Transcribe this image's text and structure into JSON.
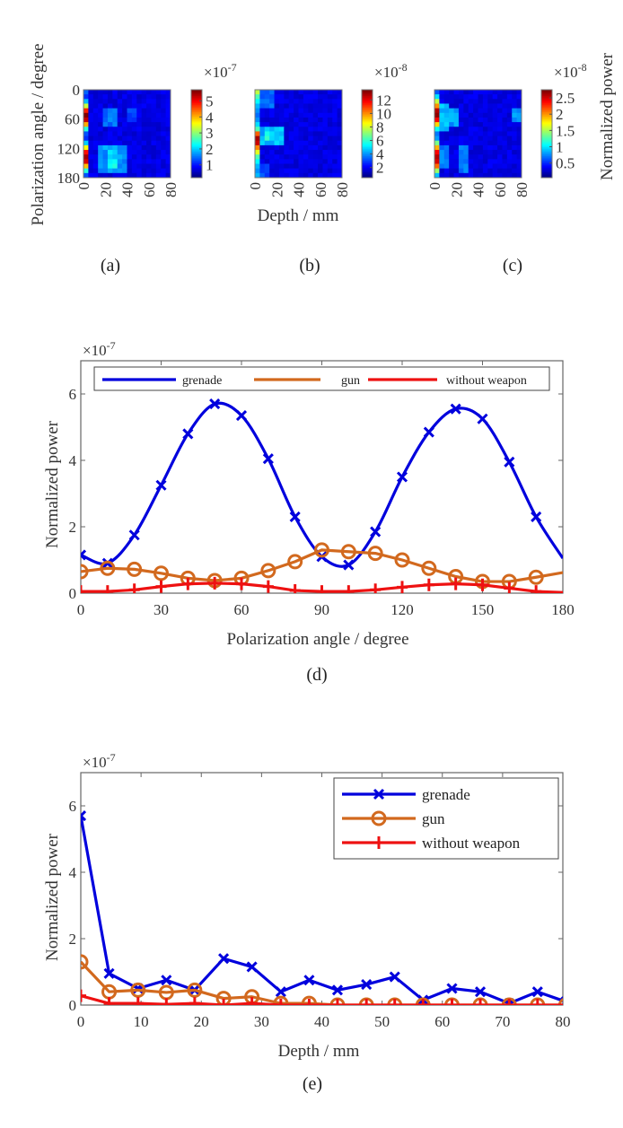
{
  "chart_data": [
    {
      "id": "a",
      "type": "heatmap",
      "caption": "(a)",
      "xlabel": "",
      "ylabel": "Polarization angle / degree",
      "x_ticks": [
        "0",
        "20",
        "40",
        "60",
        "80"
      ],
      "y_ticks": [
        "0",
        "60",
        "120",
        "180"
      ],
      "xlim": [
        0,
        80
      ],
      "ylim": [
        0,
        180
      ],
      "colorbar": {
        "exponent": "×10",
        "power": "-7",
        "ticks": [
          "1",
          "2",
          "3",
          "4",
          "5"
        ],
        "range": [
          0.2,
          5.7
        ]
      },
      "description": "Strong response in first depth column with two peaks near 40-60 deg and 130-170 deg; weak blobs near depth 20-30 mm",
      "grid": {
        "rows": 19,
        "cols": 18,
        "hot_column_profile": [
          1.2,
          0.9,
          1.7,
          3.2,
          4.8,
          5.7,
          5.3,
          4.0,
          2.3,
          1.1,
          0.9,
          1.8,
          3.5,
          4.9,
          5.5,
          5.2,
          3.9,
          2.3,
          1.1
        ],
        "blobs": [
          {
            "row_from": 4,
            "row_to": 7,
            "col_from": 4,
            "col_to": 6,
            "value": 1.3
          },
          {
            "row_from": 4,
            "row_to": 6,
            "col_from": 9,
            "col_to": 10,
            "value": 1.0
          },
          {
            "row_from": 12,
            "row_to": 17,
            "col_from": 3,
            "col_to": 8,
            "value": 1.5
          },
          {
            "row_from": 13,
            "row_to": 16,
            "col_from": 5,
            "col_to": 6,
            "value": 2.0
          }
        ]
      }
    },
    {
      "id": "b",
      "type": "heatmap",
      "caption": "(b)",
      "xlabel": "Depth / mm",
      "ylabel": "",
      "x_ticks": [
        "0",
        "20",
        "40",
        "60",
        "80"
      ],
      "y_ticks": [],
      "xlim": [
        0,
        80
      ],
      "ylim": [
        0,
        180
      ],
      "colorbar": {
        "exponent": "×10",
        "power": "-8",
        "ticks": [
          "2",
          "4",
          "6",
          "8",
          "10",
          "12"
        ],
        "range": [
          0.5,
          13.5
        ]
      },
      "description": "Hot first column peaking near 90-110 deg; cyan blob around depth 5-25 mm at 90-110 deg",
      "grid": {
        "rows": 19,
        "cols": 18,
        "hot_column_profile": [
          7.5,
          6.0,
          5.0,
          4.0,
          3.5,
          3.0,
          3.5,
          4.5,
          6.0,
          10.5,
          13.0,
          12.5,
          10.0,
          8.0,
          6.0,
          5.0,
          4.0,
          3.5,
          4.0
        ],
        "blobs": [
          {
            "row_from": 0,
            "row_to": 3,
            "col_from": 1,
            "col_to": 3,
            "value": 3.0
          },
          {
            "row_from": 8,
            "row_to": 11,
            "col_from": 1,
            "col_to": 5,
            "value": 4.0
          },
          {
            "row_from": 9,
            "row_to": 10,
            "col_from": 2,
            "col_to": 3,
            "value": 5.0
          },
          {
            "row_from": 16,
            "row_to": 18,
            "col_from": 1,
            "col_to": 2,
            "value": 2.5
          }
        ]
      }
    },
    {
      "id": "c",
      "type": "heatmap",
      "caption": "(c)",
      "xlabel": "",
      "ylabel": "Normalized power",
      "x_ticks": [
        "0",
        "20",
        "40",
        "60",
        "80"
      ],
      "y_ticks": [],
      "xlim": [
        0,
        80
      ],
      "ylim": [
        0,
        180
      ],
      "colorbar": {
        "exponent": "×10",
        "power": "-8",
        "ticks": [
          "0.5",
          "1",
          "1.5",
          "2",
          "2.5"
        ],
        "range": [
          0.05,
          2.75
        ]
      },
      "description": "Hot first column with peaks near 40-60 deg and 130-170 deg; faint vertical stripes elsewhere",
      "grid": {
        "rows": 19,
        "cols": 18,
        "hot_column_profile": [
          0.5,
          0.9,
          1.5,
          2.0,
          2.6,
          2.7,
          2.4,
          1.8,
          1.0,
          0.6,
          0.7,
          1.3,
          1.9,
          2.4,
          2.6,
          2.5,
          2.1,
          1.4,
          0.8
        ],
        "blobs": [
          {
            "row_from": 3,
            "row_to": 8,
            "col_from": 1,
            "col_to": 2,
            "value": 0.8
          },
          {
            "row_from": 4,
            "row_to": 7,
            "col_from": 3,
            "col_to": 4,
            "value": 0.7
          },
          {
            "row_from": 4,
            "row_to": 6,
            "col_from": 16,
            "col_to": 17,
            "value": 0.7
          },
          {
            "row_from": 12,
            "row_to": 17,
            "col_from": 5,
            "col_to": 6,
            "value": 0.6
          },
          {
            "row_from": 12,
            "row_to": 16,
            "col_from": 1,
            "col_to": 2,
            "value": 0.6
          }
        ]
      }
    },
    {
      "id": "d",
      "type": "line",
      "caption": "(d)",
      "xlabel": "Polarization angle / degree",
      "ylabel": "Normalized power",
      "y_exponent": "×10",
      "y_power": "-7",
      "xlim": [
        0,
        180
      ],
      "ylim": [
        0,
        7
      ],
      "x_ticks": [
        0,
        30,
        60,
        90,
        120,
        150,
        180
      ],
      "y_ticks": [
        0,
        2,
        4,
        6
      ],
      "legend": {
        "placement": "top",
        "orientation": "horizontal"
      },
      "x": [
        0,
        10,
        20,
        30,
        40,
        50,
        60,
        70,
        80,
        90,
        100,
        110,
        120,
        130,
        140,
        150,
        160,
        170,
        180
      ],
      "series": [
        {
          "name": "grenade",
          "color": "#0000dd",
          "marker": "x",
          "smooth": true,
          "values": [
            1.15,
            0.9,
            1.75,
            3.25,
            4.8,
            5.7,
            5.35,
            4.05,
            2.3,
            1.1,
            0.85,
            1.85,
            3.5,
            4.85,
            5.55,
            5.25,
            3.95,
            2.3,
            1.05
          ]
        },
        {
          "name": "gun",
          "color": "#d2691e",
          "marker": "o",
          "smooth": false,
          "values": [
            0.65,
            0.75,
            0.72,
            0.6,
            0.45,
            0.38,
            0.45,
            0.68,
            0.95,
            1.3,
            1.25,
            1.2,
            1.0,
            0.75,
            0.5,
            0.35,
            0.35,
            0.48,
            0.62
          ]
        },
        {
          "name": "without weapon",
          "color": "#ee1111",
          "marker": "+",
          "smooth": false,
          "values": [
            0.05,
            0.05,
            0.1,
            0.2,
            0.28,
            0.3,
            0.28,
            0.2,
            0.08,
            0.05,
            0.05,
            0.1,
            0.18,
            0.25,
            0.28,
            0.25,
            0.15,
            0.05,
            0.02
          ]
        }
      ]
    },
    {
      "id": "e",
      "type": "line",
      "caption": "(e)",
      "xlabel": "Depth / mm",
      "ylabel": "Normalized power",
      "y_exponent": "×10",
      "y_power": "-7",
      "xlim": [
        0,
        80
      ],
      "ylim": [
        0,
        7
      ],
      "x_ticks": [
        0,
        10,
        20,
        30,
        40,
        50,
        60,
        70,
        80
      ],
      "y_ticks": [
        0,
        2,
        4,
        6
      ],
      "legend": {
        "placement": "top-right",
        "orientation": "vertical"
      },
      "x": [
        0,
        4.7,
        9.5,
        14.2,
        18.9,
        23.7,
        28.4,
        33.2,
        37.9,
        42.6,
        47.4,
        52.1,
        56.8,
        61.6,
        66.3,
        71.1,
        75.8,
        80.5
      ],
      "series": [
        {
          "name": "grenade",
          "color": "#0000dd",
          "marker": "x",
          "values": [
            5.7,
            0.95,
            0.5,
            0.75,
            0.45,
            1.4,
            1.15,
            0.4,
            0.75,
            0.45,
            0.62,
            0.85,
            0.15,
            0.5,
            0.4,
            0.05,
            0.4,
            0.1
          ]
        },
        {
          "name": "gun",
          "color": "#d2691e",
          "marker": "o",
          "values": [
            1.3,
            0.4,
            0.45,
            0.38,
            0.45,
            0.2,
            0.25,
            0.05,
            0.05,
            0.0,
            0.0,
            0.0,
            0.0,
            0.0,
            0.0,
            0.0,
            0.0,
            0.0
          ]
        },
        {
          "name": "without weapon",
          "color": "#ee1111",
          "marker": "+",
          "values": [
            0.28,
            0.05,
            0.05,
            0.02,
            0.05,
            0.0,
            0.05,
            0.0,
            0.0,
            0.0,
            0.0,
            0.0,
            0.0,
            0.0,
            0.0,
            0.0,
            0.0,
            0.0
          ]
        }
      ]
    }
  ]
}
